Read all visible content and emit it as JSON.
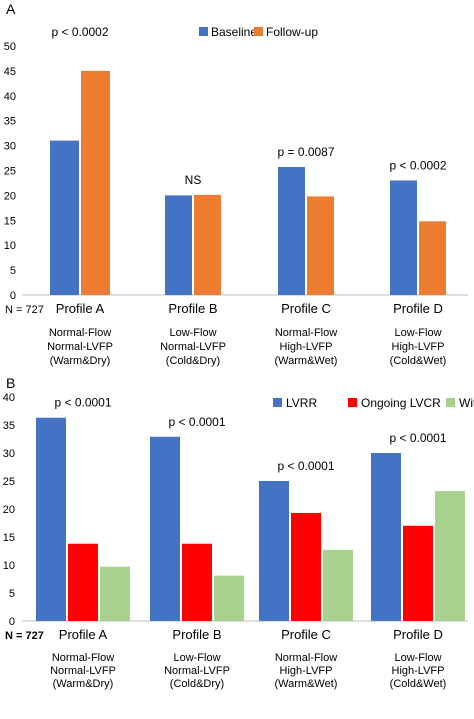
{
  "chart_data": [
    {
      "type": "bar",
      "panel_label": "A",
      "categories": [
        "Profile A",
        "Profile B",
        "Profile C",
        "Profile D"
      ],
      "category_sublabels": [
        [
          "Normal-Flow",
          "Normal-LVFP",
          "(Warm&Dry)"
        ],
        [
          "Low-Flow",
          "Normal-LVFP",
          "(Cold&Dry)"
        ],
        [
          "Normal-Flow",
          "High-LVFP",
          "(Warm&Wet)"
        ],
        [
          "Low-Flow",
          "High-LVFP",
          "(Cold&Wet)"
        ]
      ],
      "n_label": "N = 727",
      "series": [
        {
          "name": "Baseline",
          "color": "#4472C4",
          "values": [
            31,
            20,
            25.7,
            23
          ]
        },
        {
          "name": "Follow-up",
          "color": "#ED7D31",
          "values": [
            45,
            20.1,
            19.8,
            14.8
          ]
        }
      ],
      "annotations": [
        "p < 0.0002",
        "NS",
        "p = 0.0087",
        "p < 0.0002"
      ],
      "ylim": [
        0,
        50
      ],
      "yticks": [
        0,
        5,
        10,
        15,
        20,
        25,
        30,
        35,
        40,
        45,
        50
      ],
      "grid": false,
      "legend": "top-center"
    },
    {
      "type": "bar",
      "panel_label": "B",
      "categories": [
        "Profile A",
        "Profile B",
        "Profile C",
        "Profile D"
      ],
      "category_sublabels": [
        [
          "Normal-Flow",
          "Normal-LVFP",
          "(Warm&Dry)"
        ],
        [
          "Low-Flow",
          "Normal-LVFP",
          "(Cold&Dry)"
        ],
        [
          "Normal-Flow",
          "High-LVFP",
          "(Warm&Wet)"
        ],
        [
          "Low-Flow",
          "High-LVFP",
          "(Cold&Wet)"
        ]
      ],
      "n_label": "N = 727",
      "series": [
        {
          "name": "LVRR",
          "color": "#4472C4",
          "values": [
            36.3,
            32.9,
            25,
            30
          ]
        },
        {
          "name": "Ongoing LVCR",
          "color": "#FF0000",
          "values": [
            13.8,
            13.8,
            19.3,
            17
          ]
        },
        {
          "name": "Withdrawals",
          "color": "#A9D18E",
          "values": [
            9.7,
            8.1,
            12.7,
            23.2
          ]
        }
      ],
      "annotations": [
        "p < 0.0001",
        "p < 0.0001",
        "p < 0.0001",
        "p < 0.0001"
      ],
      "ylim": [
        0,
        40
      ],
      "yticks": [
        0,
        5,
        10,
        15,
        20,
        25,
        30,
        35,
        40
      ],
      "grid": false,
      "legend": "top-right"
    }
  ]
}
